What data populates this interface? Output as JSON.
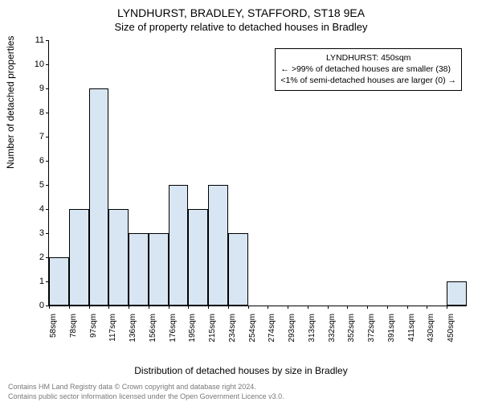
{
  "title_main": "LYNDHURST, BRADLEY, STAFFORD, ST18 9EA",
  "title_sub": "Size of property relative to detached houses in Bradley",
  "ylabel": "Number of detached properties",
  "xlabel": "Distribution of detached houses by size in Bradley",
  "chart": {
    "type": "bar",
    "ylim": [
      0,
      11
    ],
    "yticks": [
      0,
      1,
      2,
      3,
      4,
      5,
      6,
      7,
      8,
      9,
      10,
      11
    ],
    "xtick_labels": [
      "58sqm",
      "78sqm",
      "97sqm",
      "117sqm",
      "136sqm",
      "156sqm",
      "176sqm",
      "195sqm",
      "215sqm",
      "234sqm",
      "254sqm",
      "274sqm",
      "293sqm",
      "313sqm",
      "332sqm",
      "352sqm",
      "372sqm",
      "391sqm",
      "411sqm",
      "430sqm",
      "450sqm"
    ],
    "values": [
      2,
      4,
      9,
      4,
      3,
      3,
      5,
      4,
      5,
      3,
      0,
      0,
      0,
      0,
      0,
      0,
      0,
      0,
      0,
      0,
      1
    ],
    "bar_color": "#d8e6f3",
    "bar_border_color": "#000000",
    "bar_width_ratio": 1.0,
    "background_color": "#ffffff",
    "axis_color": "#000000",
    "tick_fontsize": 11,
    "xtick_fontsize": 10,
    "label_fontsize": 12,
    "title_fontsize": 14
  },
  "annotation": {
    "lines": [
      "LYNDHURST: 450sqm",
      "← >99% of detached houses are smaller (38)",
      "<1% of semi-detached houses are larger (0) →"
    ],
    "border_color": "#000000",
    "background_color": "#ffffff",
    "fontsize": 10.5
  },
  "footer_line1": "Contains HM Land Registry data © Crown copyright and database right 2024.",
  "footer_line2": "Contains public sector information licensed under the Open Government Licence v3.0.",
  "footer_color": "#787878"
}
